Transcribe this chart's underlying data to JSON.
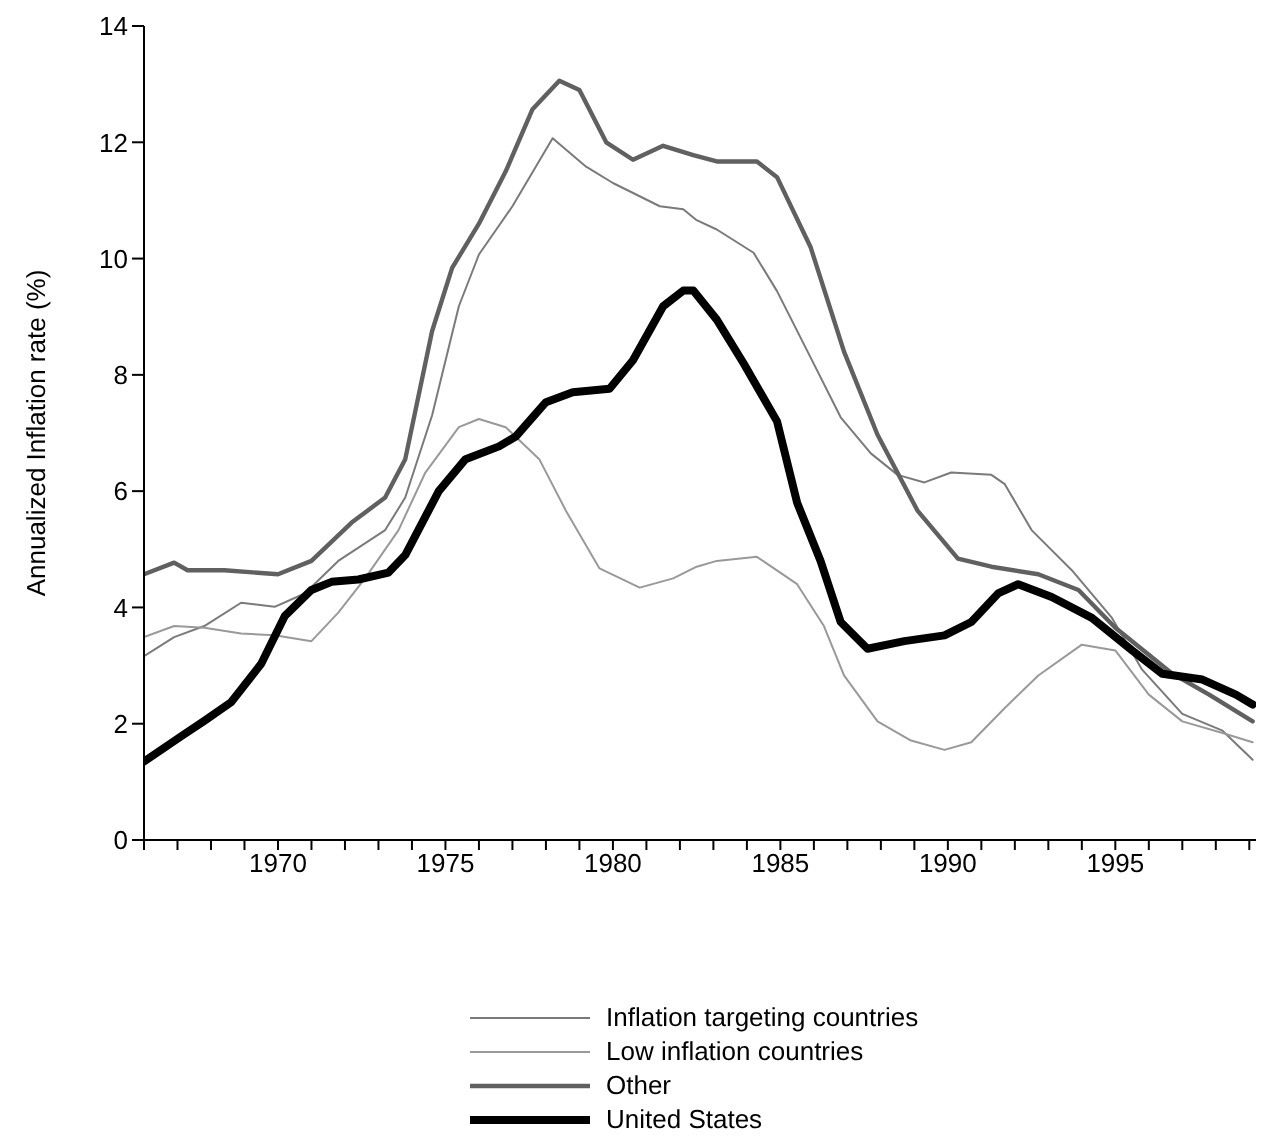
{
  "chart_data": {
    "type": "line",
    "ylabel": "Annualized Inflation rate (%)",
    "xlim": [
      1966,
      1999.2
    ],
    "ylim": [
      0,
      14
    ],
    "yticks": [
      0,
      2,
      4,
      6,
      8,
      10,
      12,
      14
    ],
    "xticks": [
      {
        "value": 1966,
        "label": null
      },
      {
        "value": 1967,
        "label": null
      },
      {
        "value": 1968,
        "label": null
      },
      {
        "value": 1969,
        "label": null
      },
      1970,
      {
        "value": 1971,
        "label": null
      },
      {
        "value": 1972,
        "label": null
      },
      {
        "value": 1973,
        "label": null
      },
      {
        "value": 1974,
        "label": null
      },
      1975,
      {
        "value": 1976,
        "label": null
      },
      {
        "value": 1977,
        "label": null
      },
      {
        "value": 1978,
        "label": null
      },
      {
        "value": 1979,
        "label": null
      },
      1980,
      {
        "value": 1981,
        "label": null
      },
      {
        "value": 1982,
        "label": null
      },
      {
        "value": 1983,
        "label": null
      },
      {
        "value": 1984,
        "label": null
      },
      1985,
      {
        "value": 1986,
        "label": null
      },
      {
        "value": 1987,
        "label": null
      },
      {
        "value": 1988,
        "label": null
      },
      {
        "value": 1989,
        "label": null
      },
      1990,
      {
        "value": 1991,
        "label": null
      },
      {
        "value": 1992,
        "label": null
      },
      {
        "value": 1993,
        "label": null
      },
      {
        "value": 1994,
        "label": null
      },
      1995,
      {
        "value": 1996,
        "label": null
      },
      {
        "value": 1997,
        "label": null
      },
      {
        "value": 1998,
        "label": null
      },
      {
        "value": 1999,
        "label": null
      }
    ],
    "grid": false,
    "legend": "bottom",
    "marker": "none",
    "line_style": "solid",
    "series": [
      {
        "name": "Inflation targeting countries",
        "color": "#7a7a7a",
        "x": [
          1966,
          1966.9,
          1967.8,
          1968.9,
          1969.9,
          1970.8,
          1971.8,
          1973.2,
          1973.8,
          1974.6,
          1975.4,
          1976,
          1977,
          1978.2,
          1979.2,
          1980,
          1981.4,
          1982.1,
          1982.5,
          1983.1,
          1984.2,
          1984.9,
          1985.9,
          1986.8,
          1987.7,
          1988.5,
          1989.3,
          1990.1,
          1991.3,
          1991.7,
          1992.5,
          1993.7,
          1994.9,
          1995.8,
          1997,
          1998.2,
          1999.1
        ],
        "values": [
          3.16,
          3.49,
          3.68,
          4.08,
          4.01,
          4.24,
          4.8,
          5.33,
          5.89,
          7.3,
          9.18,
          10.07,
          10.9,
          12.07,
          11.58,
          11.3,
          10.9,
          10.85,
          10.66,
          10.5,
          10.1,
          9.44,
          8.3,
          7.27,
          6.65,
          6.28,
          6.15,
          6.32,
          6.28,
          6.12,
          5.33,
          4.64,
          3.82,
          2.93,
          2.17,
          1.88,
          1.38
        ]
      },
      {
        "name": "Low inflation countries",
        "color": "#999999",
        "x": [
          1966,
          1966.9,
          1967.8,
          1968.9,
          1969.9,
          1971,
          1971.8,
          1972.6,
          1973.6,
          1974.4,
          1975.4,
          1976,
          1976.8,
          1977.8,
          1978.6,
          1979.6,
          1980.8,
          1981.8,
          1982.5,
          1983.1,
          1984.3,
          1985.5,
          1986.3,
          1986.9,
          1987.9,
          1988.9,
          1989.9,
          1990.7,
          1991.7,
          1992.7,
          1994,
          1995,
          1996,
          1997,
          1998.2,
          1999.1
        ],
        "values": [
          3.49,
          3.68,
          3.65,
          3.55,
          3.52,
          3.42,
          3.91,
          4.5,
          5.33,
          6.32,
          7.1,
          7.24,
          7.1,
          6.55,
          5.66,
          4.67,
          4.34,
          4.5,
          4.7,
          4.8,
          4.87,
          4.4,
          3.68,
          2.83,
          2.04,
          1.71,
          1.55,
          1.68,
          2.27,
          2.83,
          3.36,
          3.26,
          2.5,
          2.04,
          1.84,
          1.68
        ]
      },
      {
        "name": "Other",
        "color": "#606060",
        "x": [
          1966,
          1966.9,
          1967.3,
          1968.4,
          1970,
          1971,
          1972.2,
          1973.2,
          1973.8,
          1974.6,
          1975.2,
          1976,
          1976.8,
          1977.6,
          1978.4,
          1979,
          1979.8,
          1980.6,
          1981.5,
          1982.4,
          1983.1,
          1984.3,
          1984.9,
          1985.9,
          1986.9,
          1987.9,
          1989.1,
          1990.3,
          1991.3,
          1992.7,
          1993.9,
          1995,
          1996.7,
          1997.8,
          1999.1
        ],
        "values": [
          4.57,
          4.77,
          4.64,
          4.64,
          4.57,
          4.8,
          5.46,
          5.89,
          6.55,
          8.75,
          9.84,
          10.6,
          11.5,
          12.57,
          13.06,
          12.9,
          12.0,
          11.7,
          11.94,
          11.78,
          11.67,
          11.67,
          11.4,
          10.2,
          8.4,
          6.97,
          5.66,
          4.84,
          4.7,
          4.57,
          4.3,
          3.65,
          2.86,
          2.5,
          2.04
        ]
      },
      {
        "name": "United States",
        "color": "#000000",
        "x": [
          1966,
          1967.1,
          1967.8,
          1968.6,
          1969.5,
          1970.2,
          1971,
          1971.6,
          1972.4,
          1973.3,
          1973.8,
          1974.8,
          1975.6,
          1976.6,
          1977.1,
          1978,
          1978.8,
          1979.9,
          1980.6,
          1981.5,
          1982.1,
          1982.4,
          1983.1,
          1983.9,
          1984.9,
          1985.5,
          1986.2,
          1986.8,
          1987.6,
          1988.7,
          1989.9,
          1990.7,
          1991.5,
          1992.1,
          1993.1,
          1994.3,
          1995.5,
          1996.4,
          1997.6,
          1998.6,
          1999.1
        ],
        "values": [
          1.35,
          1.78,
          2.05,
          2.37,
          3.03,
          3.85,
          4.3,
          4.44,
          4.48,
          4.6,
          4.9,
          6.0,
          6.55,
          6.77,
          6.94,
          7.53,
          7.7,
          7.76,
          8.25,
          9.18,
          9.45,
          9.45,
          8.95,
          8.2,
          7.2,
          5.8,
          4.8,
          3.75,
          3.29,
          3.42,
          3.52,
          3.75,
          4.24,
          4.4,
          4.18,
          3.82,
          3.26,
          2.86,
          2.76,
          2.5,
          2.33
        ]
      }
    ]
  }
}
